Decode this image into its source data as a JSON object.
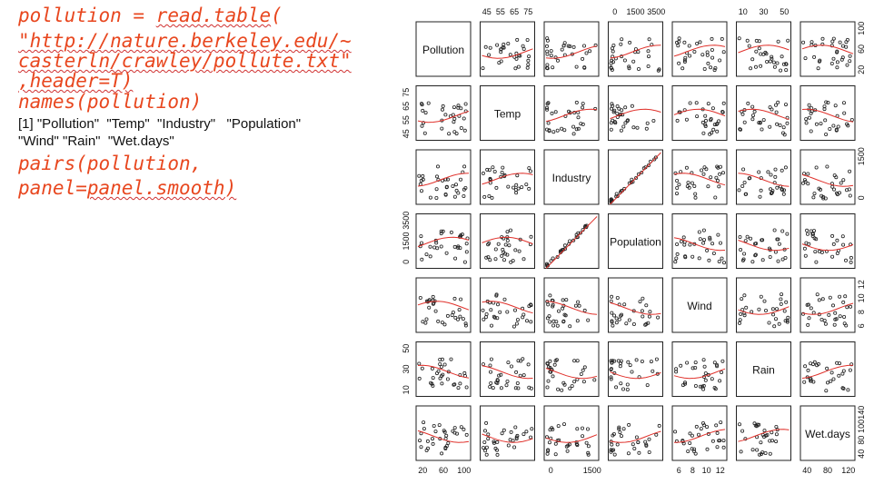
{
  "code": {
    "line1_a": "pollution = ",
    "line1_b": "read.table",
    "line1_c": "(",
    "line2": "\"http://nature.berkeley.edu/~",
    "line3": "casterln/crawley/pollute.txt\"",
    "line4": ",header=T)",
    "line5": "names(pollution)",
    "line6": "pairs(pollution,",
    "line7": "panel=panel.smooth)"
  },
  "output": {
    "line1": "[1] \"Pollution\"  \"Temp\"  \"Industry\"   \"Population\"",
    "line2": "\"Wind\" \"Rain\"  \"Wet.days\""
  },
  "chart_data": {
    "type": "scatter-matrix",
    "variables": [
      "Pollution",
      "Temp",
      "Industry",
      "Population",
      "Wind",
      "Rain",
      "Wet.days"
    ],
    "axis_ticks": {
      "Pollution": [
        "20",
        "60",
        "100"
      ],
      "Temp": [
        "45",
        "55",
        "65",
        "75"
      ],
      "Industry": [
        "0",
        "1500"
      ],
      "Population": [
        "0",
        "1500",
        "3500"
      ],
      "Wind": [
        "6",
        "8",
        "10",
        "12"
      ],
      "Rain": [
        "10",
        "30",
        "50"
      ],
      "Wet.days": [
        "40",
        "80",
        "120"
      ]
    },
    "axis_ticks_right": {
      "Pollution": [
        "20",
        "60",
        "100"
      ],
      "Industry": [
        "0",
        "1500"
      ],
      "Wind": [
        "6",
        "8",
        "10",
        "12"
      ],
      "Wet.days": [
        "40",
        "80",
        "100",
        "140"
      ]
    },
    "point_color": "#222222",
    "smooth_color": "#e0302a"
  }
}
